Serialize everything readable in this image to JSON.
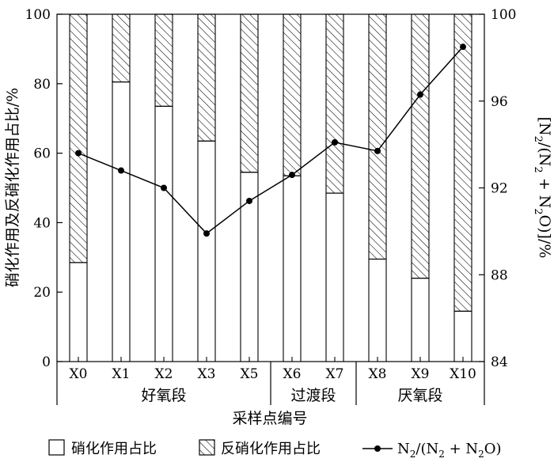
{
  "chart_data": {
    "type": "bar",
    "title": "",
    "xlabel": "采样点编号",
    "ylabel": "硝化作用及反硝化作用占比/%",
    "y2label_parts": [
      "[N",
      "2",
      "/(N",
      "2",
      " + N",
      "2",
      "O)]/%"
    ],
    "categories": [
      "X0",
      "X1",
      "X2",
      "X3",
      "X5",
      "X6",
      "X7",
      "X8",
      "X9",
      "X10"
    ],
    "groups": [
      {
        "name": "好氧段",
        "start": 0,
        "end": 4
      },
      {
        "name": "过渡段",
        "start": 5,
        "end": 6
      },
      {
        "name": "厌氧段",
        "start": 7,
        "end": 9
      }
    ],
    "ylim": [
      0,
      100
    ],
    "yticks": [
      "0",
      "20",
      "40",
      "60",
      "80",
      "100"
    ],
    "y2lim": [
      84,
      100
    ],
    "y2ticks": [
      "84",
      "88",
      "92",
      "96",
      "100"
    ],
    "series": [
      {
        "name": "硝化作用占比",
        "kind": "bar",
        "pattern": "solid-white",
        "values": [
          28.5,
          80.5,
          73.5,
          63.5,
          54.5,
          53.5,
          48.5,
          29.5,
          24,
          14.5
        ]
      },
      {
        "name": "反硝化作用占比",
        "kind": "bar",
        "pattern": "hatched",
        "values": [
          71.5,
          19.5,
          26.5,
          36.5,
          45.5,
          46.5,
          51.5,
          70.5,
          76,
          85.5
        ]
      },
      {
        "name_parts": [
          "N",
          "2",
          "/(N",
          "2",
          " + N",
          "2",
          "O)"
        ],
        "kind": "line",
        "axis": "right",
        "values": [
          93.6,
          92.8,
          92.0,
          89.9,
          91.4,
          92.6,
          94.1,
          93.7,
          96.3,
          98.5
        ]
      }
    ],
    "legend_placement": "bottom",
    "grid": false
  }
}
